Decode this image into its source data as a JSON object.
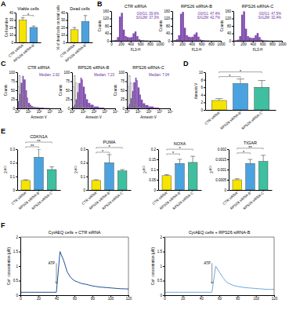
{
  "chart_data": [
    {
      "type": "bar",
      "panel": "A",
      "title": "Viable cells",
      "y_label": "Cell number",
      "categories": [
        "CTR siRNA",
        "RPS26 siRNA-B"
      ],
      "values": [
        30,
        20
      ],
      "errors": [
        3,
        2
      ],
      "colors": [
        "#f5e400",
        "#4aa3df"
      ],
      "ylim": [
        0,
        40
      ],
      "yticks": [
        0,
        10,
        20,
        30,
        40
      ],
      "significance": [
        {
          "pair": [
            0,
            1
          ],
          "label": "*"
        }
      ]
    },
    {
      "type": "bar",
      "title": "Dead cells",
      "y_label": "% of dead cells on total cells",
      "categories": [
        "CTR siRNA",
        "RPS26 siRNA-B"
      ],
      "values": [
        17,
        28
      ],
      "errors": [
        3,
        8
      ],
      "colors": [
        "#f5e400",
        "#4aa3df"
      ],
      "ylim": [
        0,
        40
      ],
      "yticks": [
        0,
        10,
        20,
        30,
        40
      ]
    },
    {
      "type": "histogram",
      "panel": "B",
      "title": "CTR siRNA",
      "x_label": "FL3-H",
      "y_label": "Counts",
      "bins": [
        0,
        40,
        80,
        120,
        160,
        200,
        240,
        280,
        320,
        360,
        400,
        440,
        480,
        520,
        560,
        600,
        640,
        680,
        720,
        760,
        800,
        840,
        880,
        920,
        960,
        1000
      ],
      "values": [
        2,
        3,
        5,
        20,
        130,
        150,
        60,
        25,
        20,
        18,
        20,
        40,
        50,
        25,
        8,
        4,
        3,
        2,
        2,
        1,
        1,
        1,
        1,
        1,
        1
      ],
      "color": "#6b2fa0",
      "xlim": [
        0,
        1000
      ],
      "xticks": [
        0,
        200,
        400,
        600,
        800,
        1000
      ],
      "ylim": [
        0,
        160
      ],
      "yticks": [
        0,
        40,
        80,
        120,
        160
      ],
      "annotations": [
        "G0/G1: 39.6%",
        "S/G2M: 37.3%"
      ]
    },
    {
      "type": "histogram",
      "title": "RPS26 siRNA-B",
      "x_label": "FL3-H",
      "y_label": "Counts",
      "bins": [
        0,
        40,
        80,
        120,
        160,
        200,
        240,
        280,
        320,
        360,
        400,
        440,
        480,
        520,
        560,
        600,
        640,
        680,
        720,
        760,
        800,
        840,
        880,
        920,
        960,
        1000
      ],
      "values": [
        2,
        4,
        8,
        30,
        145,
        155,
        70,
        30,
        22,
        20,
        22,
        35,
        45,
        22,
        7,
        4,
        3,
        2,
        2,
        1,
        1,
        1,
        1,
        1,
        1
      ],
      "color": "#6b2fa0",
      "xlim": [
        0,
        1000
      ],
      "xticks": [
        0,
        200,
        400,
        600,
        800,
        1000
      ],
      "ylim": [
        0,
        160
      ],
      "yticks": [
        0,
        40,
        80,
        120,
        160
      ],
      "annotations": [
        "G0/G1: 47.4%",
        "S/G2M: 42.7%"
      ]
    },
    {
      "type": "histogram",
      "title": "RPS26 siRNA-C",
      "x_label": "FL3-H",
      "y_label": "Counts",
      "bins": [
        0,
        40,
        80,
        120,
        160,
        200,
        240,
        280,
        320,
        360,
        400,
        440,
        480,
        520,
        560,
        600,
        640,
        680,
        720,
        760,
        800,
        840,
        880,
        920,
        960,
        1000
      ],
      "values": [
        2,
        3,
        6,
        25,
        140,
        158,
        65,
        25,
        18,
        15,
        16,
        30,
        42,
        20,
        6,
        3,
        2,
        2,
        1,
        1,
        1,
        1,
        1,
        1,
        1
      ],
      "color": "#6b2fa0",
      "xlim": [
        0,
        1000
      ],
      "xticks": [
        0,
        200,
        400,
        600,
        800,
        1000
      ],
      "ylim": [
        0,
        160
      ],
      "yticks": [
        0,
        40,
        80,
        120,
        160
      ],
      "annotations": [
        "G0/G1: 47.5%",
        "S/G2M: 32.4%"
      ]
    },
    {
      "type": "histogram",
      "panel": "C",
      "title": "CTR siRNA",
      "x_label": "Annexin V",
      "y_label": "Counts",
      "log": "x",
      "bins": [
        1,
        1.5,
        2,
        3,
        4,
        6,
        8,
        10,
        15,
        20,
        30,
        50,
        100,
        300,
        1000,
        10000
      ],
      "series": [
        {
          "color": "#6b2fa0",
          "values": [
            20,
            40,
            70,
            90,
            80,
            50,
            30,
            15,
            10,
            6,
            4,
            3,
            2,
            1,
            0
          ]
        },
        {
          "color": "#888888",
          "values": [
            60,
            90,
            70,
            40,
            20,
            10,
            5,
            3,
            2,
            1,
            1,
            0,
            0,
            0,
            0
          ]
        }
      ],
      "xlim": [
        1,
        10000
      ],
      "xticks": [
        {
          "value": 1,
          "label": "10⁰"
        },
        {
          "value": 10,
          "label": "10¹"
        },
        {
          "value": 100,
          "label": "10²"
        },
        {
          "value": 1000,
          "label": "10³"
        },
        {
          "value": 10000,
          "label": "10⁴"
        }
      ],
      "ylim": [
        0,
        100
      ],
      "yticks": [
        0,
        25,
        50,
        75,
        100
      ],
      "annotations": [
        "Median: 2.92"
      ]
    },
    {
      "type": "histogram",
      "title": "RPS26 siRNA-B",
      "x_label": "Annexin V",
      "y_label": "Counts",
      "log": "x",
      "bins": [
        1,
        1.5,
        2,
        3,
        4,
        6,
        8,
        10,
        15,
        20,
        30,
        50,
        100,
        300,
        1000,
        10000
      ],
      "series": [
        {
          "color": "#6b2fa0",
          "values": [
            5,
            10,
            25,
            45,
            70,
            85,
            80,
            60,
            40,
            25,
            15,
            10,
            5,
            2,
            0
          ]
        },
        {
          "color": "#888888",
          "values": [
            60,
            90,
            70,
            40,
            20,
            10,
            5,
            3,
            2,
            1,
            1,
            0,
            0,
            0,
            0
          ]
        }
      ],
      "xlim": [
        1,
        10000
      ],
      "xticks": [
        {
          "value": 1,
          "label": "10⁰"
        },
        {
          "value": 10,
          "label": "10¹"
        },
        {
          "value": 100,
          "label": "10²"
        },
        {
          "value": 1000,
          "label": "10³"
        },
        {
          "value": 10000,
          "label": "10⁴"
        }
      ],
      "ylim": [
        0,
        100
      ],
      "yticks": [
        0,
        25,
        50,
        75,
        100
      ],
      "annotations": [
        "Median: 7.23"
      ]
    },
    {
      "type": "histogram",
      "title": "RPS26 siRNA-C",
      "x_label": "Annexin V",
      "y_label": "Counts",
      "log": "x",
      "bins": [
        1,
        1.5,
        2,
        3,
        4,
        6,
        8,
        10,
        15,
        20,
        30,
        50,
        100,
        300,
        1000,
        10000
      ],
      "series": [
        {
          "color": "#6b2fa0",
          "values": [
            5,
            12,
            28,
            48,
            72,
            85,
            78,
            58,
            38,
            24,
            14,
            9,
            5,
            2,
            0
          ]
        },
        {
          "color": "#888888",
          "values": [
            60,
            90,
            70,
            40,
            20,
            10,
            5,
            3,
            2,
            1,
            1,
            0,
            0,
            0,
            0
          ]
        }
      ],
      "xlim": [
        1,
        10000
      ],
      "xticks": [
        {
          "value": 1,
          "label": "10⁰"
        },
        {
          "value": 10,
          "label": "10¹"
        },
        {
          "value": 100,
          "label": "10²"
        },
        {
          "value": 1000,
          "label": "10³"
        },
        {
          "value": 10000,
          "label": "10⁴"
        }
      ],
      "ylim": [
        0,
        100
      ],
      "yticks": [
        0,
        25,
        50,
        75,
        100
      ],
      "annotations": [
        "Median: 7.04"
      ]
    },
    {
      "type": "bar",
      "panel": "D",
      "y_label": "Annexin V",
      "categories": [
        "CTR siRNA",
        "RPS26 siRNA-B",
        "RPS26 siRNA-C"
      ],
      "values": [
        2.5,
        7,
        6
      ],
      "errors": [
        0.5,
        1.2,
        1.8
      ],
      "colors": [
        "#f5e400",
        "#4aa3df",
        "#3fbf9f"
      ],
      "ylim": [
        0,
        10
      ],
      "yticks": [
        0,
        2,
        4,
        6,
        8,
        10
      ],
      "significance": [
        {
          "pair": [
            0,
            1
          ],
          "label": "*"
        },
        {
          "pair": [
            0,
            2
          ],
          "label": "*"
        }
      ]
    },
    {
      "type": "bar",
      "panel": "E",
      "title": "CDKN1A",
      "y_label": "2-ΔCt",
      "categories": [
        "CTR siRNA",
        "RPS26 siRNA-B",
        "RPS26 siRNA-C"
      ],
      "values": [
        0.07,
        0.24,
        0.15
      ],
      "errors": [
        0.005,
        0.06,
        0.02
      ],
      "colors": [
        "#f5e400",
        "#4aa3df",
        "#3fbf9f"
      ],
      "ylim": [
        0,
        0.3
      ],
      "yticks": [
        0,
        0.1,
        0.2,
        0.3
      ],
      "significance": [
        {
          "pair": [
            0,
            1
          ],
          "label": "**"
        },
        {
          "pair": [
            0,
            2
          ],
          "label": "**"
        }
      ]
    },
    {
      "type": "bar",
      "title": "PUMA",
      "y_label": "2-ΔCt",
      "categories": [
        "CTR siRNA",
        "RPS26 siRNA-B",
        "RPS26 siRNA-C"
      ],
      "values": [
        0.07,
        0.2,
        0.14
      ],
      "errors": [
        0.005,
        0.06,
        0.01
      ],
      "colors": [
        "#f5e400",
        "#4aa3df",
        "#3fbf9f"
      ],
      "ylim": [
        0,
        0.3
      ],
      "yticks": [
        0,
        0.1,
        0.2,
        0.3
      ],
      "significance": [
        {
          "pair": [
            0,
            1
          ],
          "label": "*"
        },
        {
          "pair": [
            0,
            2
          ],
          "label": "*"
        }
      ]
    },
    {
      "type": "bar",
      "title": "NOXA",
      "y_label": "2-ΔCt",
      "categories": [
        "CTR siRNA",
        "RPS26 siRNA-B",
        "RPS26 siRNA-C"
      ],
      "values": [
        0.07,
        0.13,
        0.135
      ],
      "errors": [
        0.005,
        0.02,
        0.03
      ],
      "colors": [
        "#f5e400",
        "#4aa3df",
        "#3fbf9f"
      ],
      "ylim": [
        0,
        0.2
      ],
      "yticks": [
        0,
        0.05,
        0.1,
        0.15,
        0.2
      ],
      "significance": [
        {
          "pair": [
            0,
            1
          ],
          "label": "*"
        },
        {
          "pair": [
            0,
            2
          ],
          "label": "*"
        }
      ]
    },
    {
      "type": "bar",
      "title": "TIGAR",
      "y_label": "2-ΔCt",
      "categories": [
        "CTR siRNA",
        "RPS26 siRNA-B",
        "RPS26 siRNA-C"
      ],
      "values": [
        0.0005,
        0.0013,
        0.0014
      ],
      "errors": [
        5e-05,
        0.0002,
        0.0003
      ],
      "colors": [
        "#f5e400",
        "#4aa3df",
        "#3fbf9f"
      ],
      "ylim": [
        0,
        0.002
      ],
      "yticks": [
        0,
        0.0005,
        0.001,
        0.0015,
        0.002
      ],
      "significance": [
        {
          "pair": [
            0,
            1
          ],
          "label": "*"
        },
        {
          "pair": [
            0,
            2
          ],
          "label": "**"
        }
      ]
    },
    {
      "type": "line",
      "panel": "F",
      "title": "CytAEQ cells + CTR siRNA",
      "y_label": "Ca²⁺ concentration (µM)",
      "x": [
        0,
        4,
        8,
        12,
        16,
        20,
        24,
        28,
        32,
        36,
        40,
        44,
        48,
        52,
        56,
        60,
        64,
        68,
        72,
        76,
        80,
        84,
        88,
        92,
        96,
        100,
        104,
        108,
        112,
        116,
        120
      ],
      "values": [
        0.1,
        0.1,
        0.1,
        0.1,
        0.1,
        0.1,
        0.1,
        0.1,
        0.1,
        0.1,
        0.1,
        1.5,
        1.2,
        0.8,
        0.6,
        0.5,
        0.45,
        0.4,
        0.38,
        0.35,
        0.32,
        0.3,
        0.28,
        0.27,
        0.26,
        0.25,
        0.24,
        0.23,
        0.22,
        0.22,
        0.21
      ],
      "color": "#1f4e9c",
      "xlim": [
        0,
        120
      ],
      "xticks": [
        0,
        20,
        40,
        60,
        80,
        100,
        120
      ],
      "ylim": [
        0,
        2
      ],
      "yticks": [
        0,
        0.5,
        1,
        1.5,
        2
      ],
      "annotations": [
        {
          "text": "ATP",
          "x": 40
        }
      ]
    },
    {
      "type": "line",
      "title": "CytAEQ cells + RPS26 siRNA-B",
      "y_label": "Ca²⁺ concentration (µM)",
      "x": [
        0,
        4,
        8,
        12,
        16,
        20,
        24,
        28,
        32,
        36,
        40,
        44,
        48,
        52,
        56,
        60,
        64,
        68,
        72,
        76,
        80,
        84,
        88,
        92,
        96,
        100,
        104,
        108,
        112,
        116,
        120
      ],
      "values": [
        0.1,
        0.1,
        0.1,
        0.1,
        0.1,
        0.1,
        0.1,
        0.1,
        0.1,
        0.1,
        0.1,
        0.1,
        0.1,
        0.1,
        1.0,
        0.8,
        0.6,
        0.45,
        0.38,
        0.33,
        0.3,
        0.28,
        0.26,
        0.25,
        0.24,
        0.23,
        0.22,
        0.21,
        0.2,
        0.2,
        0.2
      ],
      "color": "#6fa8dc",
      "xlim": [
        0,
        120
      ],
      "xticks": [
        0,
        20,
        40,
        60,
        80,
        100,
        120
      ],
      "ylim": [
        0,
        2
      ],
      "yticks": [
        0,
        0.5,
        1,
        1.5,
        2
      ],
      "annotations": [
        {
          "text": "ATP",
          "x": 52
        }
      ]
    }
  ]
}
